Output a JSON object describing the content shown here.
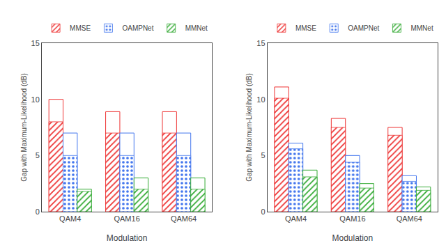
{
  "chart_data": [
    {
      "type": "bar",
      "xlabel": "Modulation",
      "ylabel": "Gap with Maximum-Likelihood (dB)",
      "categories": [
        "QAM4",
        "QAM16",
        "QAM64"
      ],
      "series": [
        {
          "name": "MMSE",
          "color": "#ee3333",
          "values": [
            10.0,
            8.9,
            8.9
          ],
          "hatched_values": [
            8.0,
            7.0,
            7.0
          ]
        },
        {
          "name": "OAMPNet",
          "color": "#4477ee",
          "values": [
            7.0,
            7.0,
            7.0
          ],
          "hatched_values": [
            5.0,
            5.0,
            5.0
          ]
        },
        {
          "name": "MMNet",
          "color": "#33aa33",
          "values": [
            2.0,
            3.0,
            3.0
          ],
          "hatched_values": [
            1.8,
            2.0,
            2.0
          ]
        }
      ],
      "ylim": [
        0,
        15
      ],
      "yticks": [
        0,
        5,
        10,
        15
      ],
      "grid": false,
      "legend": "top"
    },
    {
      "type": "bar",
      "xlabel": "Modulation",
      "ylabel": "Gap with Maximum-Likelihood (dB)",
      "categories": [
        "QAM4",
        "QAM16",
        "QAM64"
      ],
      "series": [
        {
          "name": "MMSE",
          "color": "#ee3333",
          "values": [
            11.1,
            8.3,
            7.5
          ],
          "hatched_values": [
            10.1,
            7.5,
            6.8
          ]
        },
        {
          "name": "OAMPNet",
          "color": "#4477ee",
          "values": [
            6.1,
            5.0,
            3.2
          ],
          "hatched_values": [
            5.6,
            4.4,
            2.7
          ]
        },
        {
          "name": "MMNet",
          "color": "#33aa33",
          "values": [
            3.7,
            2.5,
            2.2
          ],
          "hatched_values": [
            3.1,
            2.1,
            1.9
          ]
        }
      ],
      "ylim": [
        0,
        15
      ],
      "yticks": [
        0,
        5,
        10,
        15
      ],
      "grid": false,
      "legend": "top"
    }
  ]
}
